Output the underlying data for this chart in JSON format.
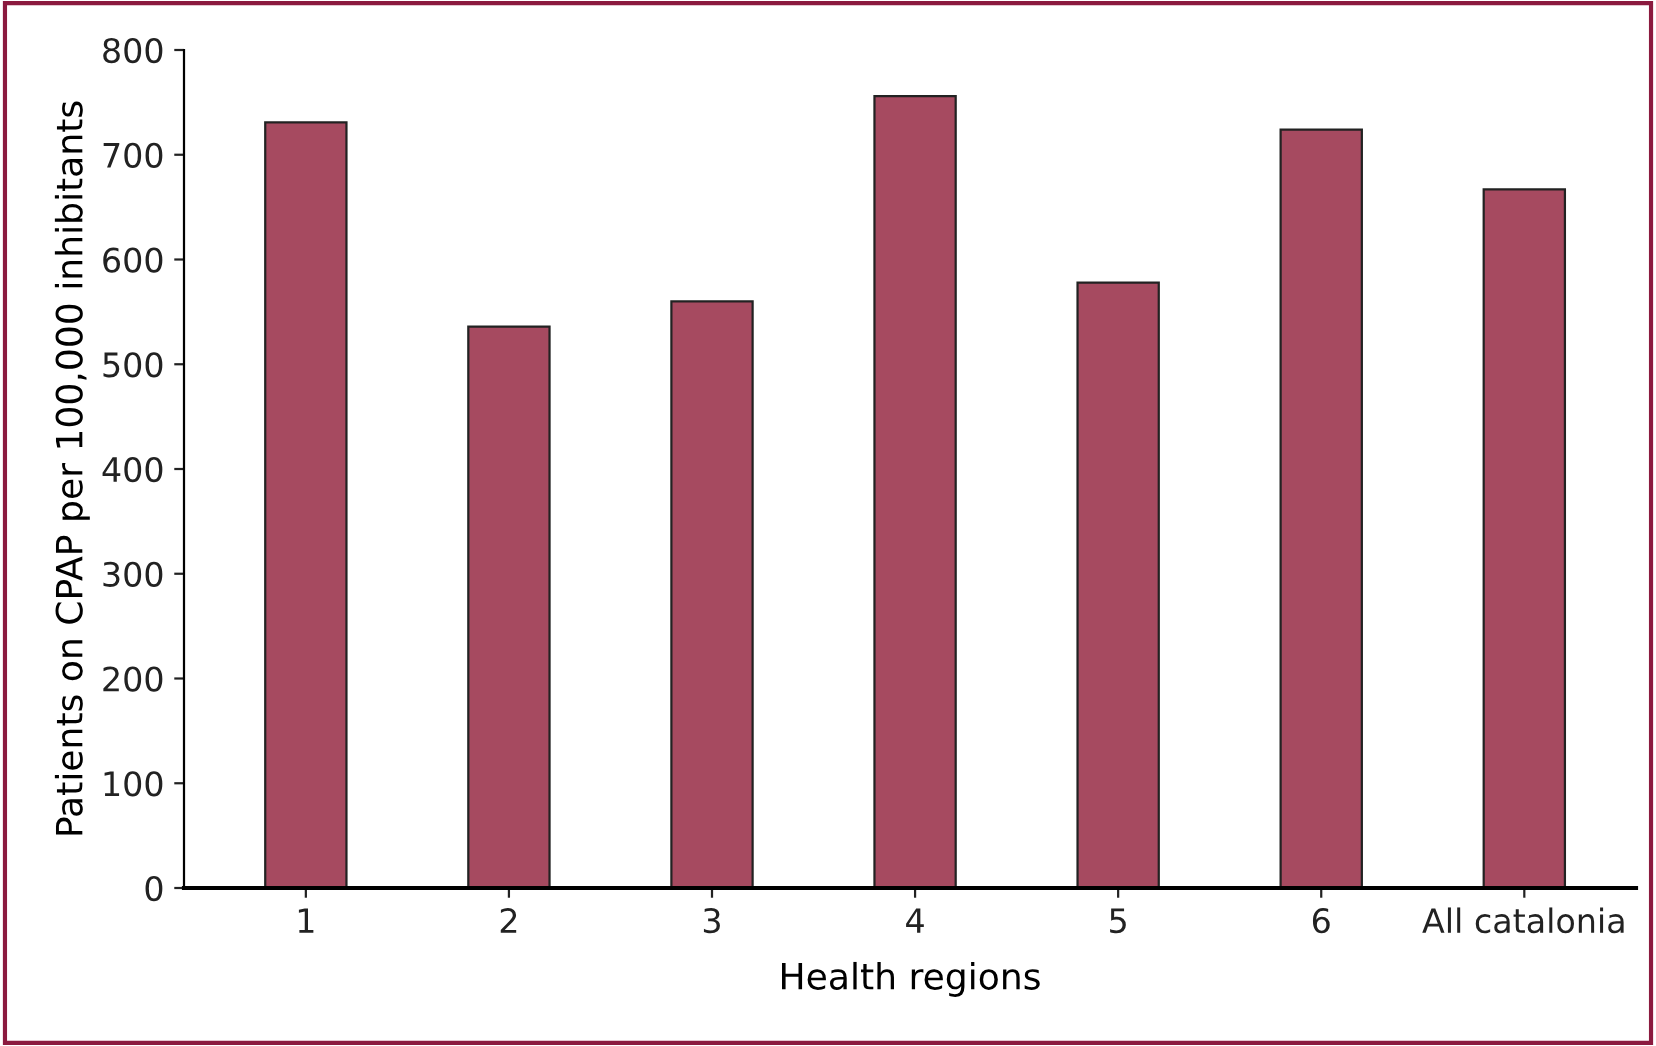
{
  "chart_data": {
    "type": "bar",
    "xlabel": "Health regions",
    "ylabel": "Patients on CPAP per 100,000 inhibitants",
    "categories": [
      "1",
      "2",
      "3",
      "4",
      "5",
      "6",
      "All catalonia"
    ],
    "values": [
      731,
      536,
      560,
      756,
      578,
      724,
      667
    ],
    "color": "#a64a60",
    "ylim": [
      0,
      800
    ],
    "yticks": [
      0,
      100,
      200,
      300,
      400,
      500,
      600,
      700,
      800
    ],
    "grid": false
  }
}
